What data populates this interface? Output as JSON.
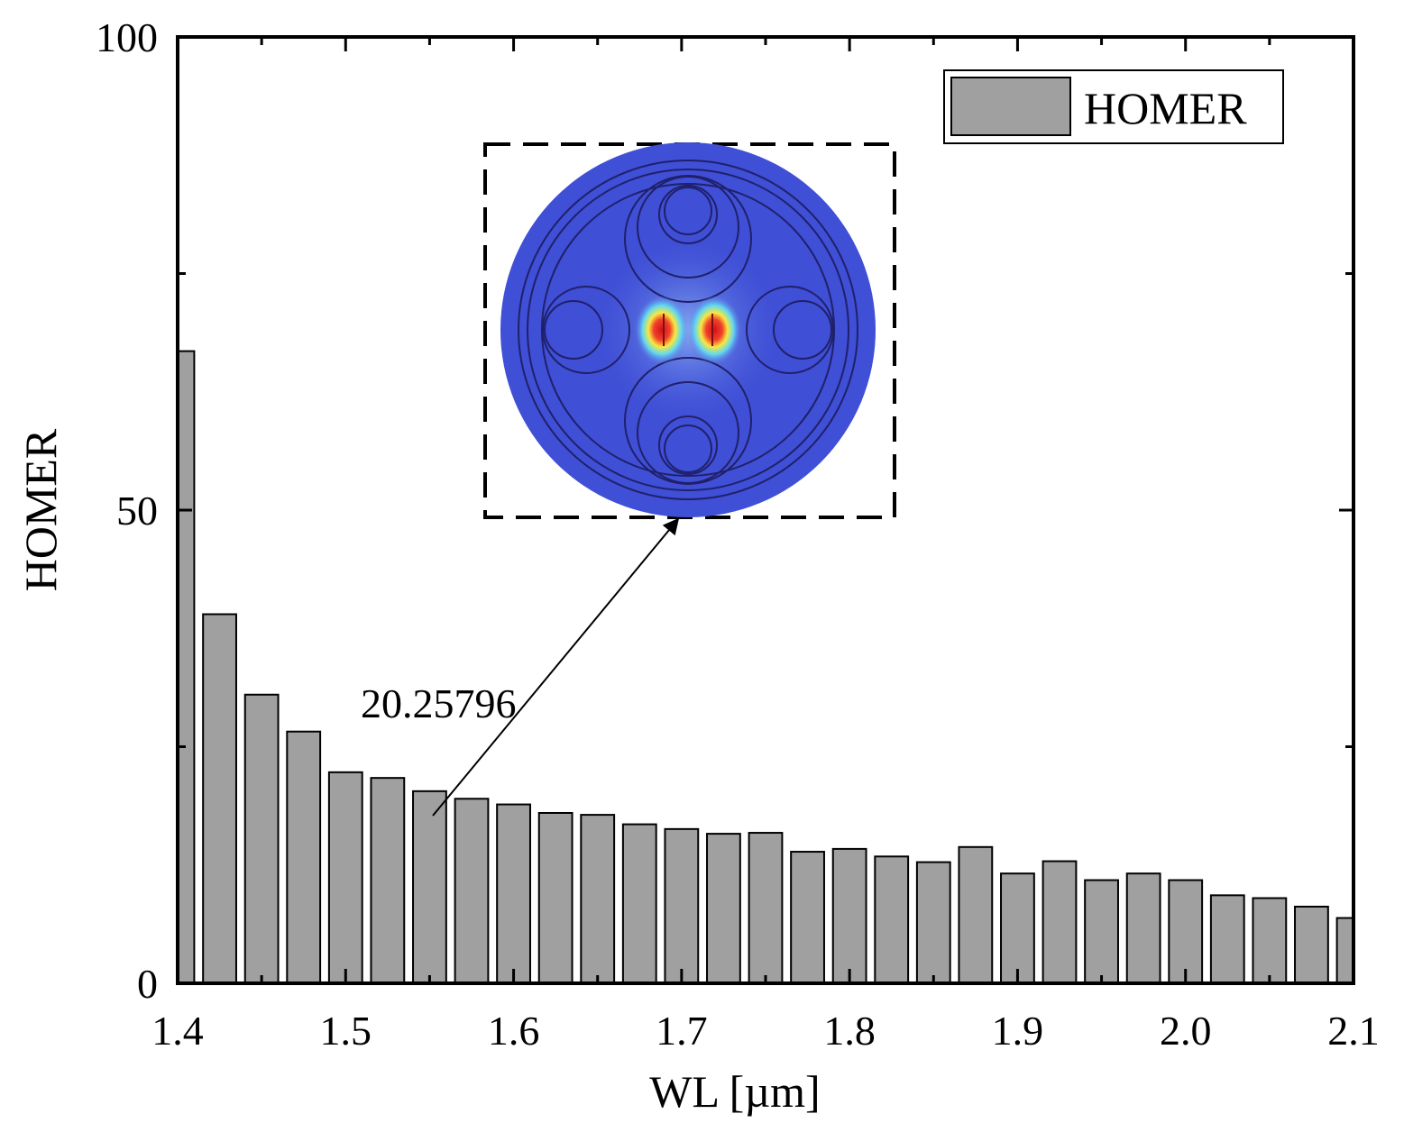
{
  "chart_data": {
    "type": "bar",
    "xlabel": "WL [µm]",
    "ylabel": "HOMER",
    "xlim": [
      1.4,
      2.1
    ],
    "ylim": [
      0,
      100
    ],
    "xticks": [
      "1.4",
      "1.5",
      "1.6",
      "1.7",
      "1.8",
      "1.9",
      "2.0",
      "2.1"
    ],
    "yticks": [
      "0",
      "50",
      "100"
    ],
    "legend": {
      "position": "top-right",
      "label": "HOMER"
    },
    "series": [
      {
        "name": "HOMER",
        "color": "#a0a0a0",
        "x": [
          1.4,
          1.425,
          1.45,
          1.475,
          1.5,
          1.525,
          1.55,
          1.575,
          1.6,
          1.625,
          1.65,
          1.675,
          1.7,
          1.725,
          1.75,
          1.775,
          1.8,
          1.825,
          1.85,
          1.875,
          1.9,
          1.925,
          1.95,
          1.975,
          2.0,
          2.025,
          2.05,
          2.075,
          2.1
        ],
        "values": [
          66.8,
          39.0,
          30.5,
          26.6,
          22.3,
          21.7,
          20.3,
          19.5,
          18.9,
          18.0,
          17.8,
          16.8,
          16.3,
          15.8,
          15.9,
          13.9,
          14.2,
          13.4,
          12.8,
          14.4,
          11.6,
          12.9,
          10.9,
          11.6,
          10.9,
          9.3,
          9.0,
          8.1,
          6.9
        ]
      }
    ],
    "annotations": [
      {
        "text": "20.25796",
        "x": 1.55,
        "y": 20.25796
      }
    ],
    "inset": {
      "description_icon": "mode-field-profile-icon",
      "colors": {
        "background": "#3f4fd6",
        "core": "#e8231a",
        "mid": "#f5e33a",
        "glow": "#5fd0f0"
      }
    }
  }
}
